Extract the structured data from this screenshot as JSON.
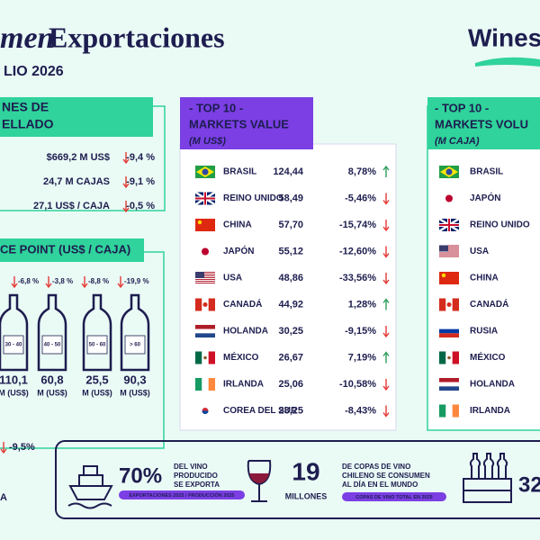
{
  "header": {
    "title_italic": "men",
    "title": "Exportaciones",
    "subtitle": "LIO 2026",
    "logo": "Wines"
  },
  "summary": {
    "title": [
      "NES DE",
      "ELLADO"
    ],
    "rows": [
      {
        "value": "$669,2 M US$",
        "change": "-9,4 %"
      },
      {
        "value": "24,7 M CAJAS",
        "change": "-9,1 %"
      },
      {
        "value": "27,1 US$ / CAJA",
        "change": "-0,5 %"
      }
    ]
  },
  "price_points": {
    "title": "CE POINT (US$ / CAJA)",
    "bottles": [
      {
        "change": "-6,8 %",
        "range": "30 - 40",
        "value": "110,1",
        "unit": "M (US$)"
      },
      {
        "change": "-3,8 %",
        "range": "40 - 50",
        "value": "60,8",
        "unit": "M (US$)"
      },
      {
        "change": "-8,8 %",
        "range": "50 - 60",
        "value": "25,5",
        "unit": "M (US$)"
      },
      {
        "change": "-19,9 %",
        "range": "> 60",
        "value": "90,3",
        "unit": "M (US$)"
      }
    ],
    "total": "-9,5%",
    "footnote": "A"
  },
  "value_table": {
    "title": [
      "- TOP 10 -",
      "MARKETS VALUE"
    ],
    "unit": "(M US$)",
    "rows": [
      [
        "BRASIL",
        "124,44",
        "8,78%"
      ],
      [
        "REINO UNIDO",
        "58,49",
        "-5,46%"
      ],
      [
        "CHINA",
        "57,70",
        "-15,74%"
      ],
      [
        "JAPÓN",
        "55,12",
        "-12,60%"
      ],
      [
        "USA",
        "48,86",
        "-33,56%"
      ],
      [
        "CANADÁ",
        "44,92",
        "1,28%"
      ],
      [
        "HOLANDA",
        "30,25",
        "-9,15%"
      ],
      [
        "MÉXICO",
        "26,67",
        "7,19%"
      ],
      [
        "IRLANDA",
        "25,06",
        "-10,58%"
      ],
      [
        "COREA DEL SUR",
        "23,25",
        "-8,43%"
      ]
    ]
  },
  "volume_table": {
    "title": [
      "- TOP 10 -",
      "MARKETS VOLU"
    ],
    "unit": "(M CAJA)",
    "rows": [
      "BRASIL",
      "JAPÓN",
      "REINO UNIDO",
      "USA",
      "CHINA",
      "CANADÁ",
      "RUSIA",
      "MÉXICO",
      "HOLANDA",
      "IRLANDA"
    ]
  },
  "bottom": {
    "export_pct": "70%",
    "export_text": [
      "DEL VINO",
      "PRODUCIDO",
      "SE EXPORTA"
    ],
    "export_note": "EXPORTACIONES 2025 / PRODUCCIÓN 2025",
    "glasses": "19",
    "glasses_unit": "MILLONES",
    "glasses_text": [
      "DE COPAS DE VINO",
      "CHILENO SE CONSUMEN",
      "AL DÍA EN EL MUNDO"
    ],
    "glasses_note": "COPAS DE VINO TOTAL EN 2025",
    "boxes": "32"
  }
}
